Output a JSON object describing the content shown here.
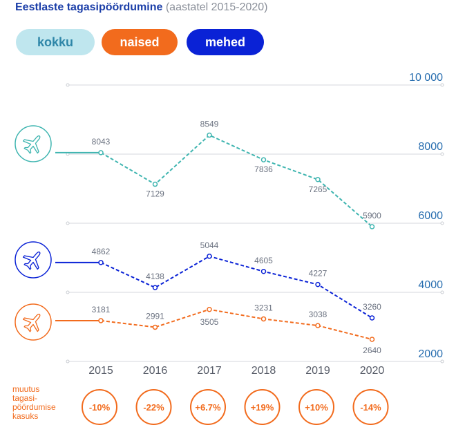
{
  "title": {
    "main": "Eestlaste tagasipöördumine",
    "sub": "(aastatel 2015-2020)"
  },
  "filters": [
    {
      "label": "kokku",
      "color": "#bfe6ee"
    },
    {
      "label": "naised",
      "color": "#f26b1d"
    },
    {
      "label": "mehed",
      "color": "#0a22d6"
    }
  ],
  "change_label": [
    "muutus",
    "tagasi-",
    "pöördumise",
    "kasuks"
  ],
  "chart_data": {
    "type": "line",
    "x": [
      "2015",
      "2016",
      "2017",
      "2018",
      "2019",
      "2020"
    ],
    "ylim": [
      2000,
      10000
    ],
    "yticks": [
      "10 000",
      "8000",
      "6000",
      "4000",
      "2000"
    ],
    "yticks_values": [
      10000,
      8000,
      6000,
      4000,
      2000
    ],
    "grid": true,
    "series": [
      {
        "name": "kokku",
        "color": "#3fb5b0",
        "icon": "plane-icon",
        "values": [
          8043,
          7129,
          8549,
          7836,
          7265,
          5900
        ]
      },
      {
        "name": "mehed",
        "color": "#0a22d6",
        "icon": "plane-icon",
        "values": [
          4862,
          4138,
          5044,
          4605,
          4227,
          3260
        ]
      },
      {
        "name": "naised",
        "color": "#f26b1d",
        "icon": "plane-icon",
        "values": [
          3181,
          2991,
          3505,
          3231,
          3038,
          2640
        ]
      }
    ],
    "changes": [
      "-10%",
      "-22%",
      "+6.7%",
      "+19%",
      "+10%",
      "-14%"
    ]
  }
}
